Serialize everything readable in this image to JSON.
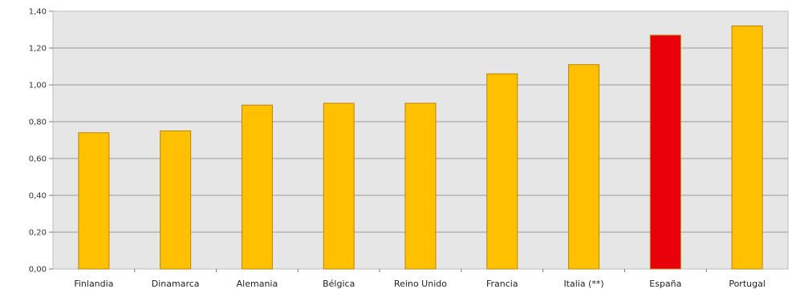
{
  "chart_data": {
    "type": "bar",
    "categories": [
      "Finlandia",
      "Dinamarca",
      "Alemania",
      "Bélgica",
      "Reino Unido",
      "Francia",
      "Italia (**)",
      "España",
      "Portugal"
    ],
    "values": [
      0.74,
      0.75,
      0.89,
      0.9,
      0.9,
      1.06,
      1.11,
      1.27,
      1.32
    ],
    "ylim": [
      0,
      1.4
    ],
    "yticks": [
      "0,00",
      "0,20",
      "0,40",
      "0,60",
      "0,80",
      "1,00",
      "1,20",
      "1,40"
    ],
    "grid": true,
    "colors": {
      "default_bar": "#FFC000",
      "highlight_bar": "#E8000B",
      "bar_border": "#B8860B",
      "plot_background": "#E6E6E6",
      "grid": "#9A9A9A"
    },
    "highlight_category": "España"
  }
}
